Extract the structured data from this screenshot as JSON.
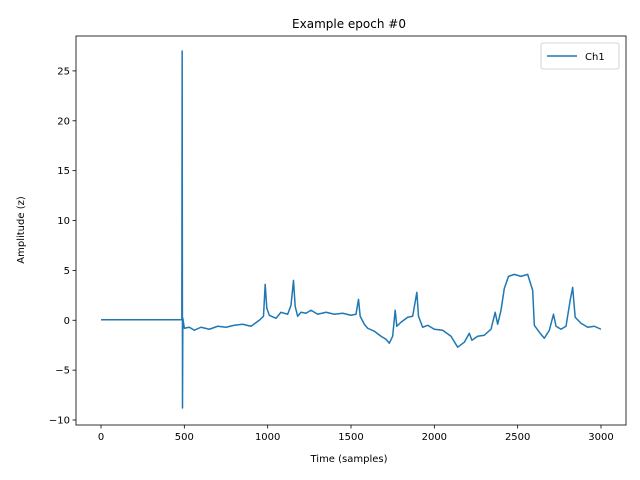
{
  "chart_data": {
    "type": "line",
    "title": "Example epoch #0",
    "xlabel": "Time (samples)",
    "ylabel": "Amplitude (z)",
    "xlim": [
      -150,
      3150
    ],
    "ylim": [
      -10.5,
      28.5
    ],
    "xticks": [
      0,
      500,
      1000,
      1500,
      2000,
      2500,
      3000
    ],
    "yticks": [
      -10,
      -5,
      0,
      5,
      10,
      15,
      20,
      25
    ],
    "grid": false,
    "legend": "top-right",
    "series": [
      {
        "name": "Ch1",
        "color": "#1f77b4",
        "points": [
          [
            0,
            0.05
          ],
          [
            480,
            0.05
          ],
          [
            485,
            0.1
          ],
          [
            487,
            27.0
          ],
          [
            489,
            -8.8
          ],
          [
            491,
            0.2
          ],
          [
            500,
            -0.8
          ],
          [
            530,
            -0.7
          ],
          [
            560,
            -1.0
          ],
          [
            600,
            -0.7
          ],
          [
            650,
            -0.9
          ],
          [
            700,
            -0.6
          ],
          [
            750,
            -0.7
          ],
          [
            800,
            -0.5
          ],
          [
            850,
            -0.4
          ],
          [
            900,
            -0.6
          ],
          [
            950,
            0.0
          ],
          [
            975,
            0.4
          ],
          [
            985,
            3.6
          ],
          [
            995,
            1.2
          ],
          [
            1010,
            0.5
          ],
          [
            1050,
            0.2
          ],
          [
            1080,
            0.8
          ],
          [
            1120,
            0.6
          ],
          [
            1140,
            1.5
          ],
          [
            1155,
            4.0
          ],
          [
            1165,
            1.4
          ],
          [
            1180,
            0.4
          ],
          [
            1200,
            0.8
          ],
          [
            1230,
            0.7
          ],
          [
            1260,
            1.0
          ],
          [
            1300,
            0.6
          ],
          [
            1350,
            0.8
          ],
          [
            1400,
            0.6
          ],
          [
            1450,
            0.7
          ],
          [
            1500,
            0.5
          ],
          [
            1530,
            0.6
          ],
          [
            1545,
            2.1
          ],
          [
            1555,
            0.4
          ],
          [
            1580,
            -0.4
          ],
          [
            1600,
            -0.8
          ],
          [
            1640,
            -1.1
          ],
          [
            1680,
            -1.6
          ],
          [
            1710,
            -1.9
          ],
          [
            1730,
            -2.3
          ],
          [
            1750,
            -1.6
          ],
          [
            1765,
            1.0
          ],
          [
            1775,
            -0.6
          ],
          [
            1800,
            -0.2
          ],
          [
            1840,
            0.3
          ],
          [
            1870,
            0.4
          ],
          [
            1895,
            2.8
          ],
          [
            1905,
            0.4
          ],
          [
            1930,
            -0.7
          ],
          [
            1960,
            -0.5
          ],
          [
            2000,
            -0.9
          ],
          [
            2050,
            -1.0
          ],
          [
            2100,
            -1.6
          ],
          [
            2140,
            -2.7
          ],
          [
            2180,
            -2.2
          ],
          [
            2210,
            -1.3
          ],
          [
            2225,
            -2.0
          ],
          [
            2260,
            -1.6
          ],
          [
            2300,
            -1.5
          ],
          [
            2340,
            -0.9
          ],
          [
            2365,
            0.8
          ],
          [
            2380,
            -0.4
          ],
          [
            2400,
            1.0
          ],
          [
            2420,
            3.2
          ],
          [
            2445,
            4.4
          ],
          [
            2480,
            4.6
          ],
          [
            2520,
            4.4
          ],
          [
            2560,
            4.6
          ],
          [
            2590,
            3.0
          ],
          [
            2600,
            -0.5
          ],
          [
            2630,
            -1.2
          ],
          [
            2660,
            -1.8
          ],
          [
            2690,
            -1.0
          ],
          [
            2715,
            0.6
          ],
          [
            2730,
            -0.6
          ],
          [
            2760,
            -0.9
          ],
          [
            2790,
            -0.6
          ],
          [
            2815,
            2.0
          ],
          [
            2830,
            3.3
          ],
          [
            2845,
            0.3
          ],
          [
            2880,
            -0.3
          ],
          [
            2920,
            -0.7
          ],
          [
            2960,
            -0.6
          ],
          [
            3000,
            -0.9
          ]
        ]
      }
    ]
  }
}
